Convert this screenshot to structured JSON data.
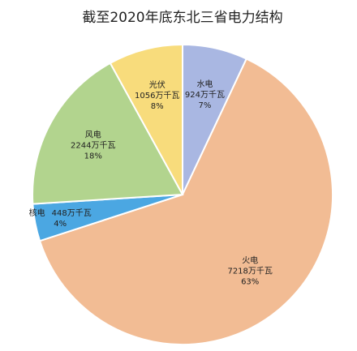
{
  "chart_data": {
    "type": "pie",
    "title": "截至2020年底东北三省电力结构",
    "categories": [
      "水电",
      "火电",
      "核电",
      "风电",
      "光伏"
    ],
    "capacity_labels": [
      "924万千瓦",
      "7218万千瓦",
      "448万千瓦",
      "2244万千瓦",
      "1056万千瓦"
    ],
    "values": [
      7,
      63,
      4,
      18,
      8
    ],
    "value_labels": [
      "7%",
      "63%",
      "4%",
      "18%",
      "8%"
    ],
    "colors": [
      "#a9b7e2",
      "#f2bc94",
      "#4ba7e2",
      "#b2d48e",
      "#f8dc7c"
    ]
  }
}
